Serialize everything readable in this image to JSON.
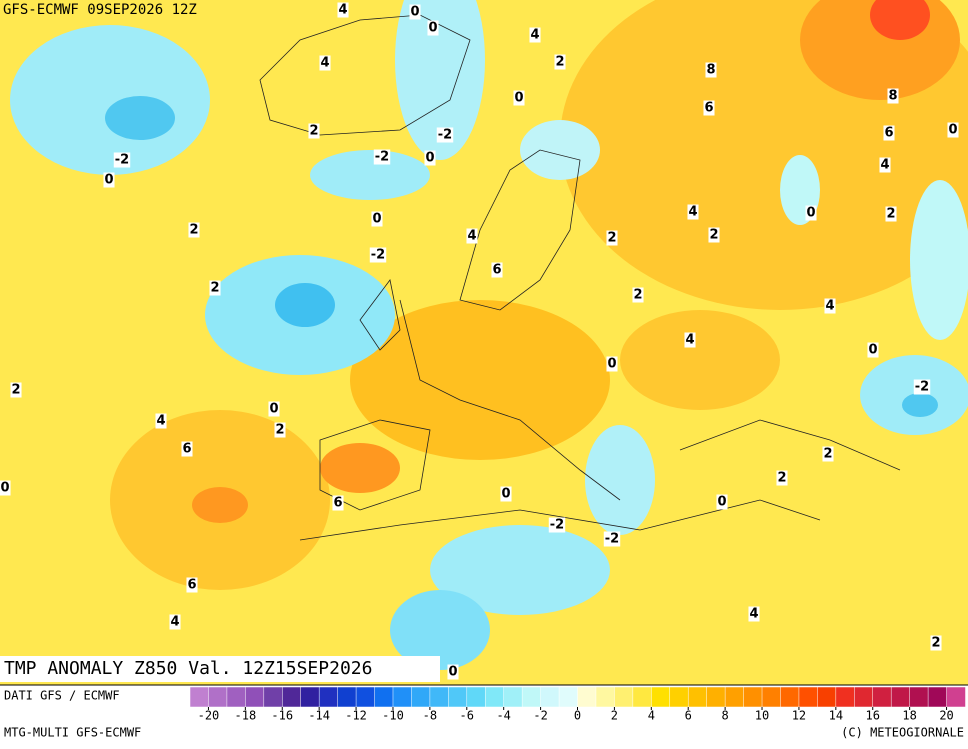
{
  "map": {
    "header": "GFS-ECMWF 09SEP2026 12Z",
    "title": "TMP ANOMALY Z850 Val. 12Z15SEP2026",
    "source": "DATI GFS / ECMWF",
    "model": "MTG-MULTI GFS-ECMWF",
    "copyright": "(C) METEOGIORNALE",
    "contour_labels": [
      4,
      0,
      0,
      4,
      2,
      8,
      4,
      0,
      6,
      8,
      2,
      -2,
      6,
      0,
      -2,
      -2,
      0,
      0,
      4,
      4,
      0,
      2,
      0,
      2,
      4,
      2,
      2,
      -2,
      6,
      2,
      2,
      4,
      4,
      0,
      0,
      2,
      -2,
      0,
      4,
      2,
      6,
      2,
      2,
      0,
      0,
      6,
      0,
      -2,
      -2,
      6,
      4,
      4,
      2,
      0
    ],
    "legend": {
      "range": [
        -21,
        21
      ],
      "ticks": [
        -20,
        -18,
        -16,
        -14,
        -12,
        -10,
        -8,
        -6,
        -4,
        -2,
        0,
        2,
        4,
        6,
        8,
        10,
        12,
        14,
        16,
        18,
        20
      ],
      "colors": [
        "#c080d0",
        "#b070c8",
        "#a060c0",
        "#9050b8",
        "#7040a8",
        "#502898",
        "#3020a0",
        "#2030c0",
        "#1040d0",
        "#1050e0",
        "#1070f0",
        "#2090f8",
        "#30a8f8",
        "#40b8f8",
        "#50c8f8",
        "#60d8f8",
        "#80e8f8",
        "#a0f0f8",
        "#c0f8f8",
        "#d0f8fc",
        "#e0fcfc",
        "#fffcd0",
        "#fff8a0",
        "#fff070",
        "#ffe840",
        "#ffe000",
        "#ffd000",
        "#ffc000",
        "#ffb000",
        "#ffa000",
        "#ff9000",
        "#ff8000",
        "#ff6800",
        "#ff5000",
        "#f84000",
        "#f03020",
        "#e02830",
        "#d02040",
        "#c01848",
        "#b01050",
        "#a00858",
        "#d04090"
      ]
    }
  }
}
